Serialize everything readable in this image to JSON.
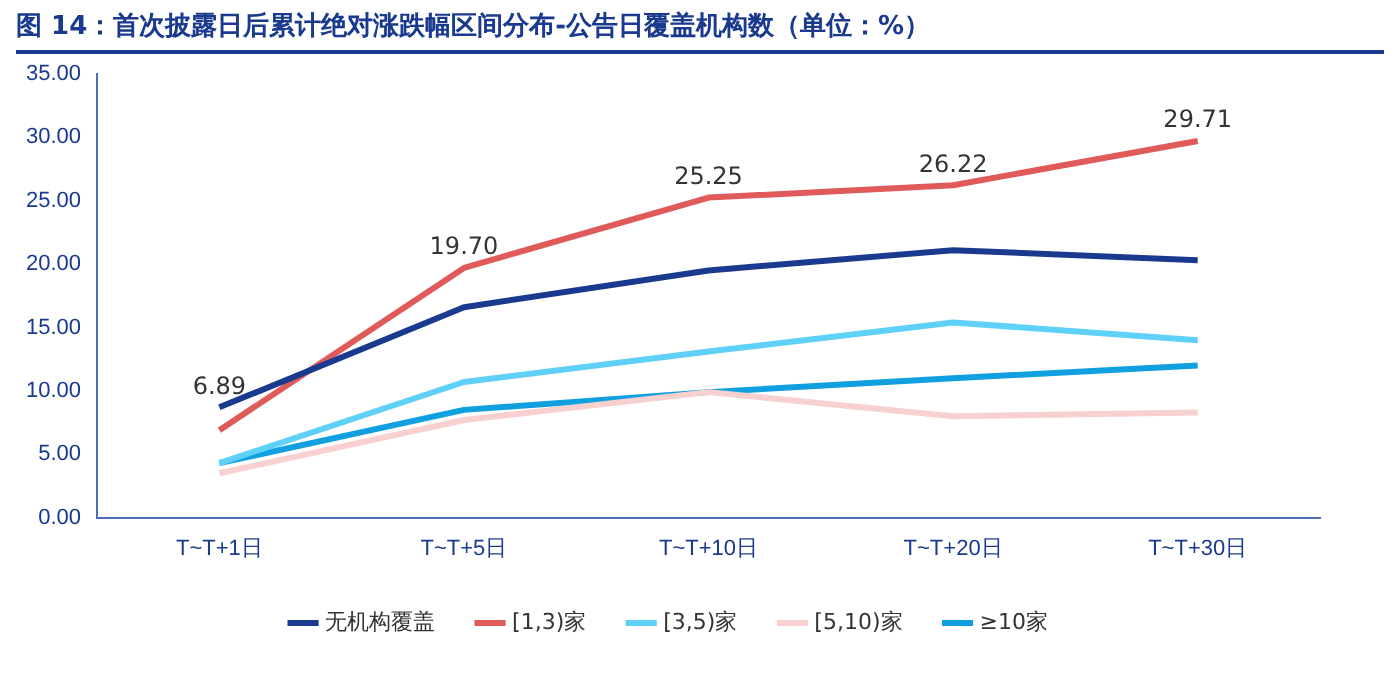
{
  "chart_data": {
    "type": "line",
    "title": "图 14：首次披露日后累计绝对涨跌幅区间分布-公告日覆盖机构数（单位：%）",
    "categories": [
      "T~T+1日",
      "T~T+5日",
      "T~T+10日",
      "T~T+20日",
      "T~T+30日"
    ],
    "series": [
      {
        "name": "无机构覆盖",
        "color": "#1a3a8f",
        "values": [
          8.7,
          16.6,
          19.5,
          21.1,
          20.3
        ]
      },
      {
        "name": "[1,3)家",
        "color": "#e05a5a",
        "values": [
          6.89,
          19.7,
          25.25,
          26.22,
          29.71
        ],
        "value_labels": [
          "6.89",
          "19.70",
          "25.25",
          "26.22",
          "29.71"
        ]
      },
      {
        "name": "[3,5)家",
        "color": "#5fd0f8",
        "values": [
          4.3,
          10.7,
          13.1,
          15.4,
          14.0
        ]
      },
      {
        "name": "[5,10)家",
        "color": "#f8d0d0",
        "values": [
          3.5,
          7.7,
          9.9,
          8.0,
          8.3
        ]
      },
      {
        "name": "≥10家",
        "color": "#10a0e0",
        "values": [
          4.3,
          8.5,
          9.9,
          11.0,
          12.0
        ]
      }
    ],
    "ylim": [
      0,
      35
    ],
    "yticks": [
      {
        "value": 0,
        "label": "0.00"
      },
      {
        "value": 5,
        "label": "5.00"
      },
      {
        "value": 10,
        "label": "10.00"
      },
      {
        "value": 15,
        "label": "15.00"
      },
      {
        "value": 20,
        "label": "20.00"
      },
      {
        "value": 25,
        "label": "25.00"
      },
      {
        "value": 30,
        "label": "30.00"
      },
      {
        "value": 35,
        "label": "35.00"
      }
    ],
    "grid": false,
    "legend": "bottom",
    "marker": "none",
    "line_style": "solid"
  }
}
